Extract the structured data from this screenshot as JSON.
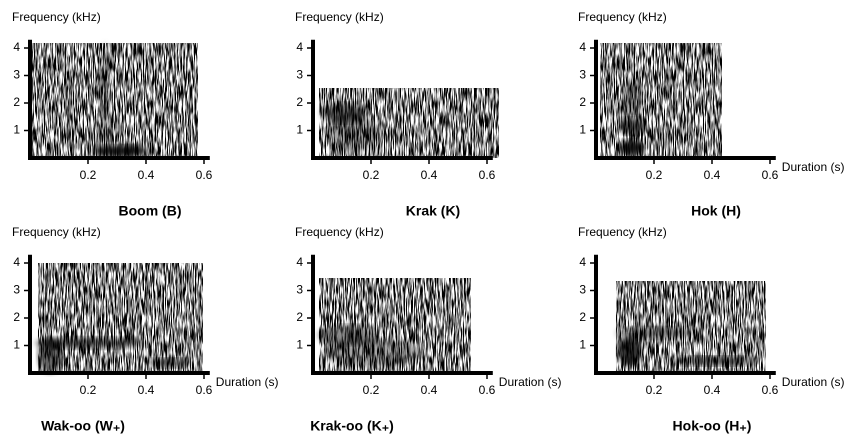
{
  "chart_data": [
    {
      "type": "spectrogram",
      "title": "Boom (B)",
      "y_label": "Frequency (kHz)",
      "xlim": [
        0,
        0.62
      ],
      "ylim": [
        0,
        4.3
      ],
      "xticks": [
        0.2,
        0.4,
        0.6
      ],
      "yticks": [
        1,
        2,
        3,
        4
      ]
    },
    {
      "type": "spectrogram",
      "title": "Krak (K)",
      "y_label": "Frequency (kHz)",
      "xlim": [
        0,
        0.62
      ],
      "ylim": [
        0,
        4.3
      ],
      "xticks": [
        0.2,
        0.4,
        0.6
      ],
      "yticks": [
        1,
        2,
        3,
        4
      ]
    },
    {
      "type": "spectrogram",
      "title": "Hok (H)",
      "y_label": "Frequency (kHz)",
      "x_label": "Duration (s)",
      "xlim": [
        0,
        0.62
      ],
      "ylim": [
        0,
        4.3
      ],
      "xticks": [
        0.2,
        0.4,
        0.6
      ],
      "yticks": [
        1,
        2,
        3,
        4
      ]
    },
    {
      "type": "spectrogram",
      "title": "Wak-oo (W₊)",
      "y_label": "Frequency (kHz)",
      "x_label": "Duration (s)",
      "xlim": [
        0,
        0.62
      ],
      "ylim": [
        0,
        4.3
      ],
      "xticks": [
        0.2,
        0.4,
        0.6
      ],
      "yticks": [
        1,
        2,
        3,
        4
      ]
    },
    {
      "type": "spectrogram",
      "title": "Krak-oo (K₊)",
      "y_label": "Frequency (kHz)",
      "x_label": "Duration (s)",
      "xlim": [
        0,
        0.62
      ],
      "ylim": [
        0,
        4.3
      ],
      "xticks": [
        0.2,
        0.4,
        0.6
      ],
      "yticks": [
        1,
        2,
        3,
        4
      ]
    },
    {
      "type": "spectrogram",
      "title": "Hok-oo (H₊)",
      "y_label": "Frequency (kHz)",
      "x_label": "Duration (s)",
      "xlim": [
        0,
        0.62
      ],
      "ylim": [
        0,
        4.3
      ],
      "xticks": [
        0.2,
        0.4,
        0.6
      ],
      "yticks": [
        1,
        2,
        3,
        4
      ]
    }
  ]
}
